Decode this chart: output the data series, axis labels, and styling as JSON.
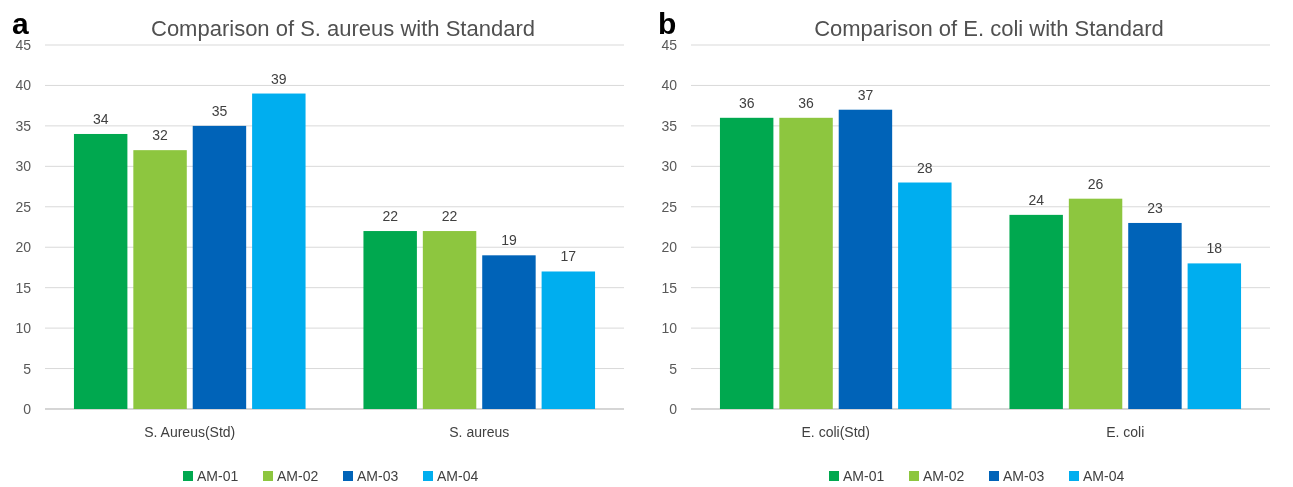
{
  "chart_data": [
    {
      "type": "bar",
      "title": "Comparison of S. aureus with Standard",
      "annotations": [
        "a"
      ],
      "categories": [
        "S. Aureus(Std)",
        "S. aureus"
      ],
      "series": [
        {
          "name": "AM-01",
          "color": "#00a84f",
          "values": [
            34,
            22
          ]
        },
        {
          "name": "AM-02",
          "color": "#8dc63f",
          "values": [
            32,
            22
          ]
        },
        {
          "name": "AM-03",
          "color": "#0063b8",
          "values": [
            35,
            19
          ]
        },
        {
          "name": "AM-04",
          "color": "#00aeef",
          "values": [
            39,
            17
          ]
        }
      ],
      "ylim": [
        0,
        45
      ],
      "yticks": [
        0,
        5,
        10,
        15,
        20,
        25,
        30,
        35,
        40,
        45
      ],
      "grid": "y",
      "legend": "bottom",
      "data_labels": true
    },
    {
      "type": "bar",
      "title": "Comparison of E. coli with Standard",
      "annotations": [
        "b"
      ],
      "categories": [
        "E. coli(Std)",
        "E. coli"
      ],
      "series": [
        {
          "name": "AM-01",
          "color": "#00a84f",
          "values": [
            36,
            24
          ]
        },
        {
          "name": "AM-02",
          "color": "#8dc63f",
          "values": [
            36,
            26
          ]
        },
        {
          "name": "AM-03",
          "color": "#0063b8",
          "values": [
            37,
            23
          ]
        },
        {
          "name": "AM-04",
          "color": "#00aeef",
          "values": [
            28,
            18
          ]
        }
      ],
      "ylim": [
        0,
        45
      ],
      "yticks": [
        0,
        5,
        10,
        15,
        20,
        25,
        30,
        35,
        40,
        45
      ],
      "grid": "y",
      "legend": "bottom",
      "data_labels": true
    }
  ]
}
